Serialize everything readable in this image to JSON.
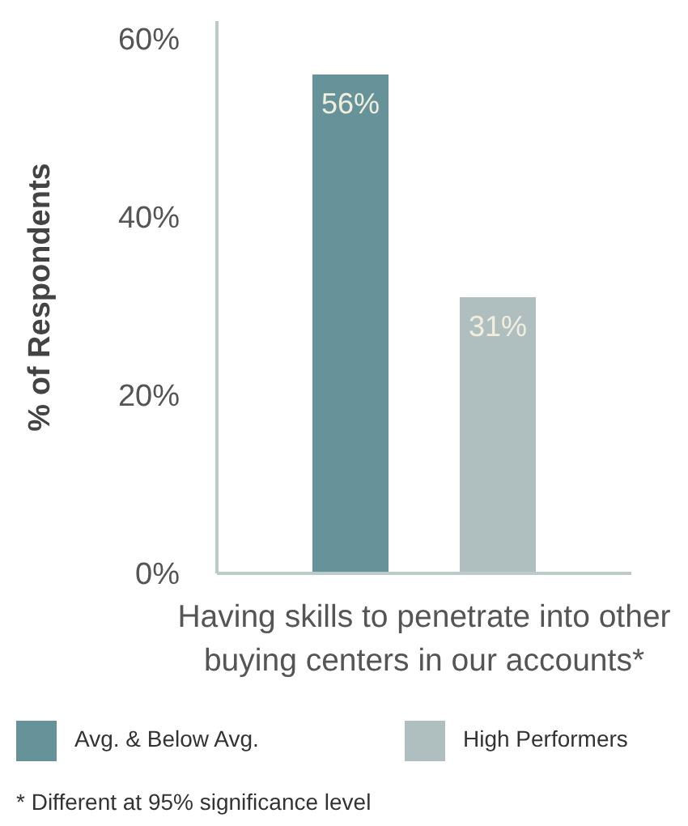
{
  "chart_data": {
    "type": "bar",
    "ylabel": "% of Respondents",
    "categories": [
      "Having skills to penetrate into other buying centers in our accounts*"
    ],
    "series": [
      {
        "name": "Avg. & Below Avg.",
        "color": "#66939a",
        "values": [
          56
        ],
        "value_labels": [
          "56%"
        ]
      },
      {
        "name": "High Performers",
        "color": "#afbfbf",
        "values": [
          31
        ],
        "value_labels": [
          "31%"
        ]
      }
    ],
    "ylim": [
      0,
      62
    ],
    "yticks": [
      {
        "value": 0,
        "label": "0%"
      },
      {
        "value": 20,
        "label": "20%"
      },
      {
        "value": 40,
        "label": "40%"
      },
      {
        "value": 60,
        "label": "60%"
      }
    ],
    "legend": "bottom left",
    "annotations": [
      "* Different at 95% significance level"
    ]
  }
}
